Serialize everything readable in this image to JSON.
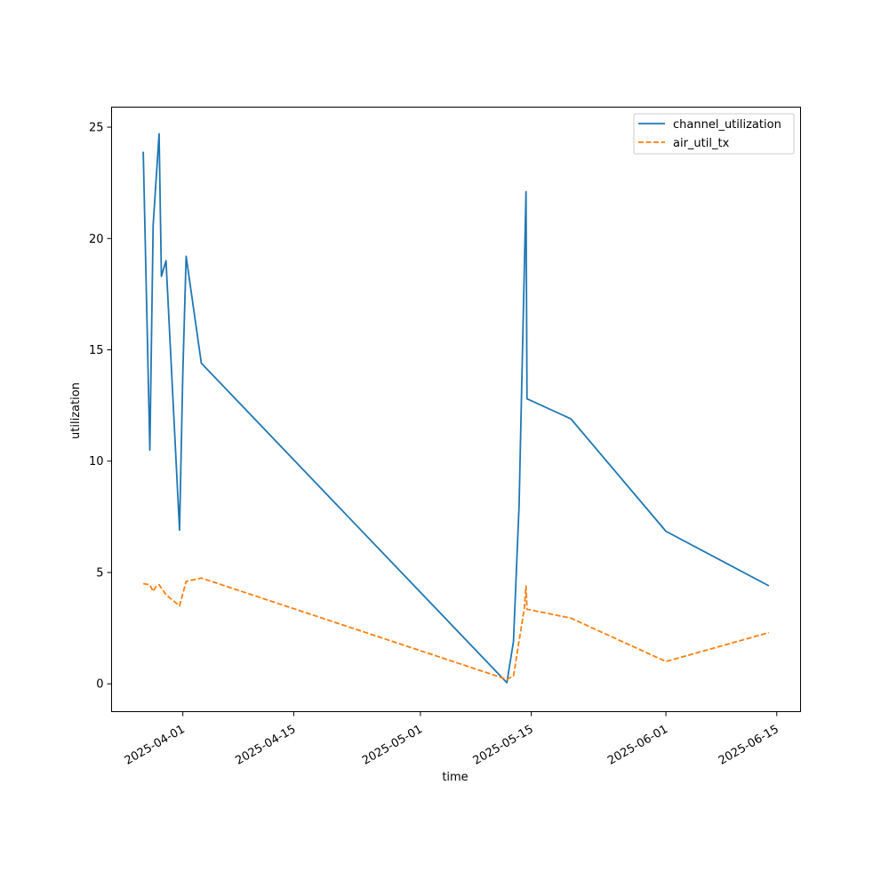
{
  "chart_data": {
    "type": "line",
    "title": "",
    "xlabel": "time",
    "ylabel": "utilization",
    "x_ticks": [
      "2025-04-01",
      "2025-04-15",
      "2025-05-01",
      "2025-05-15",
      "2025-06-01",
      "2025-06-15"
    ],
    "y_ticks": [
      0,
      5,
      10,
      15,
      20,
      25
    ],
    "xlim": [
      "2025-03-23",
      "2025-06-18"
    ],
    "ylim": [
      -1.25,
      25.9
    ],
    "legend_position": "top-right",
    "grid": false,
    "series": [
      {
        "name": "channel_utilization",
        "color": "#1f77b4",
        "style": "solid",
        "points": [
          {
            "x": "2025-03-27",
            "y": 23.9
          },
          {
            "x": "2025-03-27T20:00",
            "y": 10.5
          },
          {
            "x": "2025-03-28T06:00",
            "y": 20.6
          },
          {
            "x": "2025-03-29",
            "y": 24.7
          },
          {
            "x": "2025-03-29T07:00",
            "y": 18.3
          },
          {
            "x": "2025-03-29T21:00",
            "y": 19.0
          },
          {
            "x": "2025-03-31T14:00",
            "y": 6.9
          },
          {
            "x": "2025-04-01",
            "y": 14.0
          },
          {
            "x": "2025-04-01T10:00",
            "y": 19.2
          },
          {
            "x": "2025-04-03T08:00",
            "y": 14.4
          },
          {
            "x": "2025-05-11T22:00",
            "y": 0.05
          },
          {
            "x": "2025-05-12T18:00",
            "y": 1.9
          },
          {
            "x": "2025-05-13T11:00",
            "y": 8.0
          },
          {
            "x": "2025-05-14T08:00",
            "y": 22.1
          },
          {
            "x": "2025-05-14T11:00",
            "y": 12.8
          },
          {
            "x": "2025-05-20",
            "y": 11.9
          },
          {
            "x": "2025-06-01",
            "y": 6.85
          },
          {
            "x": "2025-06-14",
            "y": 4.4
          }
        ]
      },
      {
        "name": "air_util_tx",
        "color": "#ff7f0e",
        "style": "dashed",
        "points": [
          {
            "x": "2025-03-27",
            "y": 4.5
          },
          {
            "x": "2025-03-27T20:00",
            "y": 4.45
          },
          {
            "x": "2025-03-28T06:00",
            "y": 4.15
          },
          {
            "x": "2025-03-28T16:00",
            "y": 4.4
          },
          {
            "x": "2025-03-29",
            "y": 4.45
          },
          {
            "x": "2025-03-29T21:00",
            "y": 4.0
          },
          {
            "x": "2025-03-31T14:00",
            "y": 3.5
          },
          {
            "x": "2025-04-01T10:00",
            "y": 4.6
          },
          {
            "x": "2025-04-03T08:00",
            "y": 4.75
          },
          {
            "x": "2025-05-11T22:00",
            "y": 0.2
          },
          {
            "x": "2025-05-12T18:00",
            "y": 0.35
          },
          {
            "x": "2025-05-14T03:00",
            "y": 3.4
          },
          {
            "x": "2025-05-14T08:00",
            "y": 4.4
          },
          {
            "x": "2025-05-14T11:00",
            "y": 3.35
          },
          {
            "x": "2025-05-20",
            "y": 2.95
          },
          {
            "x": "2025-06-01",
            "y": 1.0
          },
          {
            "x": "2025-06-14",
            "y": 2.3
          }
        ]
      }
    ]
  }
}
